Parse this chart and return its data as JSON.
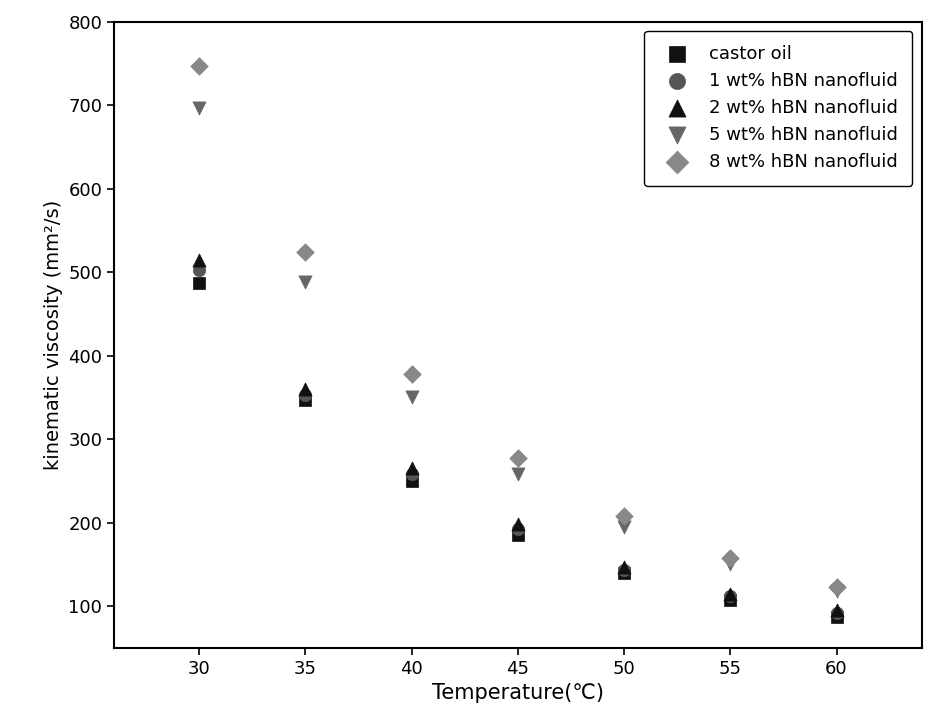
{
  "temperatures": [
    30,
    35,
    40,
    45,
    50,
    55,
    60
  ],
  "castor_oil": [
    487,
    347,
    250,
    185,
    140,
    108,
    87
  ],
  "hbn_1wt": [
    503,
    353,
    258,
    192,
    143,
    112,
    92
  ],
  "hbn_2wt": [
    515,
    360,
    265,
    198,
    147,
    115,
    96
  ],
  "hbn_5wt": [
    697,
    488,
    350,
    258,
    195,
    150,
    118
  ],
  "hbn_8wt": [
    747,
    524,
    378,
    278,
    208,
    158,
    123
  ],
  "xlabel": "Temperature(℃)",
  "ylabel": "kinematic viscosity (mm²/s)",
  "ylim": [
    50,
    800
  ],
  "yticks": [
    100,
    200,
    300,
    400,
    500,
    600,
    700,
    800
  ],
  "xlim": [
    26,
    64
  ],
  "xticks": [
    30,
    35,
    40,
    45,
    50,
    55,
    60
  ],
  "legend_labels": [
    "castor oil",
    "1 wt% hBN nanofluid",
    "2 wt% hBN nanofluid",
    "5 wt% hBN nanofluid",
    "8 wt% hBN nanofluid"
  ],
  "colors": [
    "#111111",
    "#555555",
    "#111111",
    "#666666",
    "#888888"
  ],
  "marker_sizes": [
    80,
    80,
    90,
    90,
    80
  ],
  "xlabel_fontsize": 15,
  "ylabel_fontsize": 14,
  "tick_fontsize": 13,
  "legend_fontsize": 13
}
